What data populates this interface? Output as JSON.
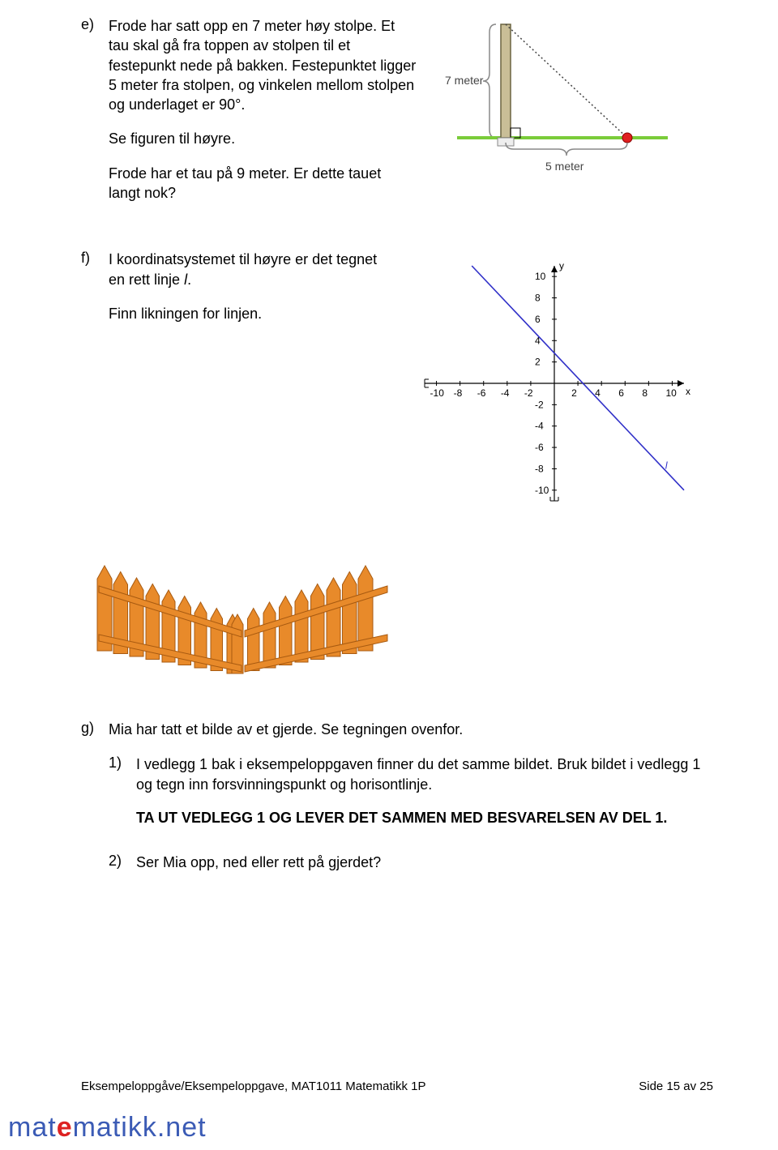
{
  "e": {
    "label": "e)",
    "p1": "Frode har satt opp en 7 meter høy stolpe. Et tau skal gå fra toppen av stolpen til et festepunkt nede på bakken. Festepunktet ligger 5 meter fra stolpen, og vinkelen mellom stolpen og underlaget er 90°.",
    "p1b": "Se figuren til høyre.",
    "p2": "Frode har et tau på 9 meter. Er dette tauet langt nok?",
    "fig": {
      "label_v": "7 meter",
      "label_h": "5 meter",
      "pole_top_y": 10,
      "pole_bottom_y": 150,
      "ground_y": 150,
      "pole_x": 80,
      "anchor_x": 230,
      "colors": {
        "pole_fill": "#c9be97",
        "pole_stroke": "#6b6440",
        "ground": "#7acc3a",
        "rope": "#444444",
        "anchor": "#e02020",
        "brace": "#888888",
        "text": "#444444"
      }
    }
  },
  "f": {
    "label": "f)",
    "p1a": "I koordinatsystemet til høyre er det tegnet en rett linje ",
    "p1_i": "l",
    "p1b": ".",
    "p2": "Finn likningen for linjen.",
    "chart": {
      "xmin": -11,
      "xmax": 11,
      "ymin": -11,
      "ymax": 11,
      "xticks": [
        -10,
        -8,
        -6,
        -4,
        -2,
        2,
        4,
        6,
        8,
        10
      ],
      "yticks": [
        10,
        8,
        6,
        4,
        2,
        -2,
        -4,
        -6,
        -8,
        -10
      ],
      "xlabel": "x",
      "ylabel": "y",
      "line_label": "l",
      "line_p1": {
        "x": -7,
        "y": 11
      },
      "line_p2": {
        "x": 11,
        "y": -10
      },
      "colors": {
        "axis": "#000000",
        "tick_text": "#000000",
        "line": "#3030c8"
      },
      "fontsize": 12
    }
  },
  "fence": {
    "colors": {
      "fill": "#e88a2a",
      "stroke": "#a85a10"
    }
  },
  "g": {
    "label": "g)",
    "p1": "Mia har tatt et bilde av et gjerde. Se tegningen ovenfor.",
    "s1_label": "1)",
    "s1_text": "I vedlegg 1 bak i eksempeloppgaven finner du det samme bildet. Bruk bildet i vedlegg 1 og tegn inn forsvinningspunkt og horisontlinje.",
    "s1_bold": "TA UT VEDLEGG 1 OG LEVER DET SAMMEN MED BESVARELSEN AV DEL 1.",
    "s2_label": "2)",
    "s2_text": "Ser Mia opp, ned eller rett på gjerdet?"
  },
  "footer": {
    "left": "Eksempeloppgåve/Eksempeloppgave, MAT1011 Matematikk 1P",
    "right": "Side 15 av 25"
  },
  "logo": {
    "text": "matematikk.net"
  }
}
